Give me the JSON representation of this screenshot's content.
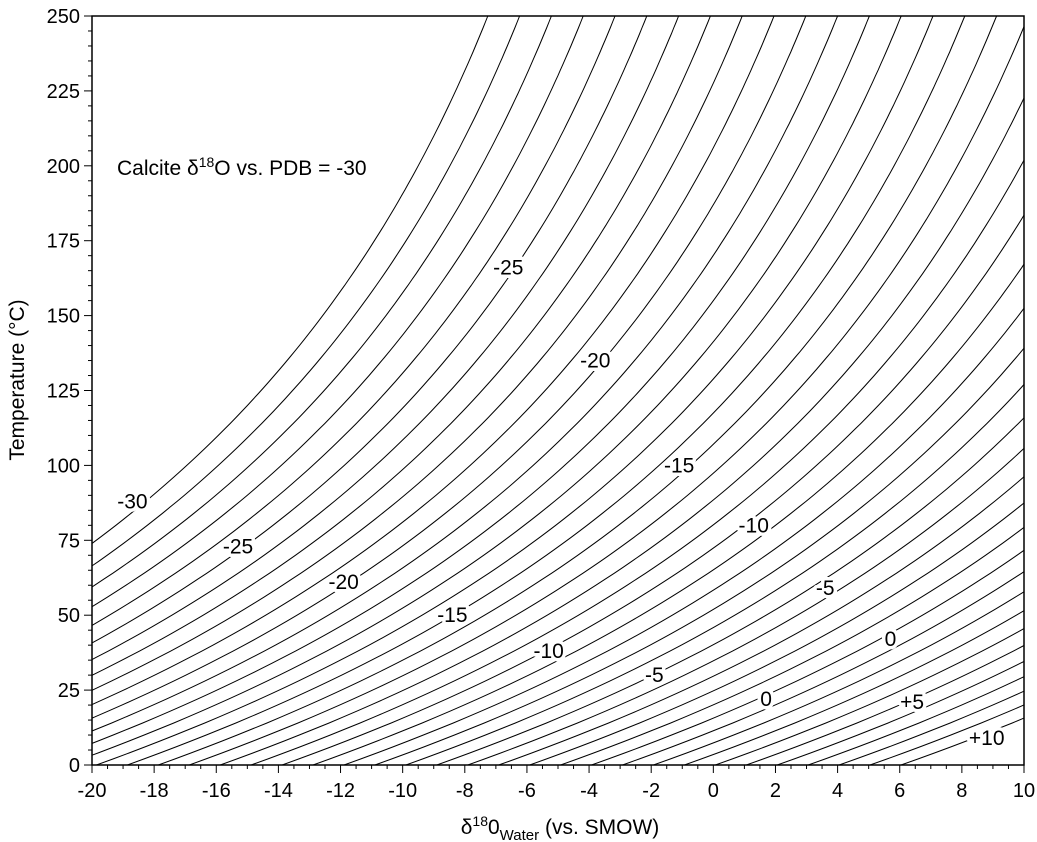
{
  "chart_data": {
    "type": "line",
    "title": "",
    "xlabel": {
      "base": "δ",
      "sup": "18",
      "main": "0",
      "sub": "Water",
      "rest": " (vs. SMOW)"
    },
    "ylabel": "Temperature (°C)",
    "xlim": [
      -20,
      10
    ],
    "ylim": [
      0,
      250
    ],
    "x_ticks": [
      -20,
      -18,
      -16,
      -14,
      -12,
      -10,
      -8,
      -6,
      -4,
      -2,
      0,
      2,
      4,
      6,
      8,
      10
    ],
    "x_tick_labels": [
      "-20",
      "-18",
      "-16",
      "-14",
      "-12",
      "-10",
      "-8",
      "-6",
      "-4",
      "-2",
      "0",
      "2",
      "4",
      "6",
      "8",
      "10"
    ],
    "y_ticks": [
      0,
      25,
      50,
      75,
      100,
      125,
      150,
      175,
      200,
      225,
      250
    ],
    "y_tick_labels": [
      "0",
      "25",
      "50",
      "75",
      "100",
      "125",
      "150",
      "175",
      "200",
      "225",
      "250"
    ],
    "grid": false,
    "annotation": {
      "pre": "Calcite δ",
      "sup": "18",
      "post": "O vs. PDB = -30"
    },
    "series_description": "Isolines of calcite δ18O (PDB) from -30 to +10 in steps of 1 permil",
    "contour_levels": {
      "start": -30,
      "end": 10,
      "step": 1
    },
    "contour_labels": [
      {
        "text": "-30",
        "x": -18.7,
        "y": 88
      },
      {
        "text": "-25",
        "x": -15.3,
        "y": 73
      },
      {
        "text": "-20",
        "x": -11.9,
        "y": 61
      },
      {
        "text": "-15",
        "x": -8.4,
        "y": 50
      },
      {
        "text": "-10",
        "x": -5.3,
        "y": 38
      },
      {
        "text": "-5",
        "x": -1.9,
        "y": 30
      },
      {
        "text": "0",
        "x": 1.7,
        "y": 22
      },
      {
        "text": "+5",
        "x": 6.4,
        "y": 21
      },
      {
        "text": "+10",
        "x": 8.8,
        "y": 9
      },
      {
        "text": "-25",
        "x": -6.6,
        "y": 166
      },
      {
        "text": "-20",
        "x": -3.8,
        "y": 135
      },
      {
        "text": "-15",
        "x": -1.1,
        "y": 100
      },
      {
        "text": "-10",
        "x": 1.3,
        "y": 80
      },
      {
        "text": "-5",
        "x": 3.6,
        "y": 59
      },
      {
        "text": "0",
        "x": 5.7,
        "y": 42
      }
    ]
  }
}
